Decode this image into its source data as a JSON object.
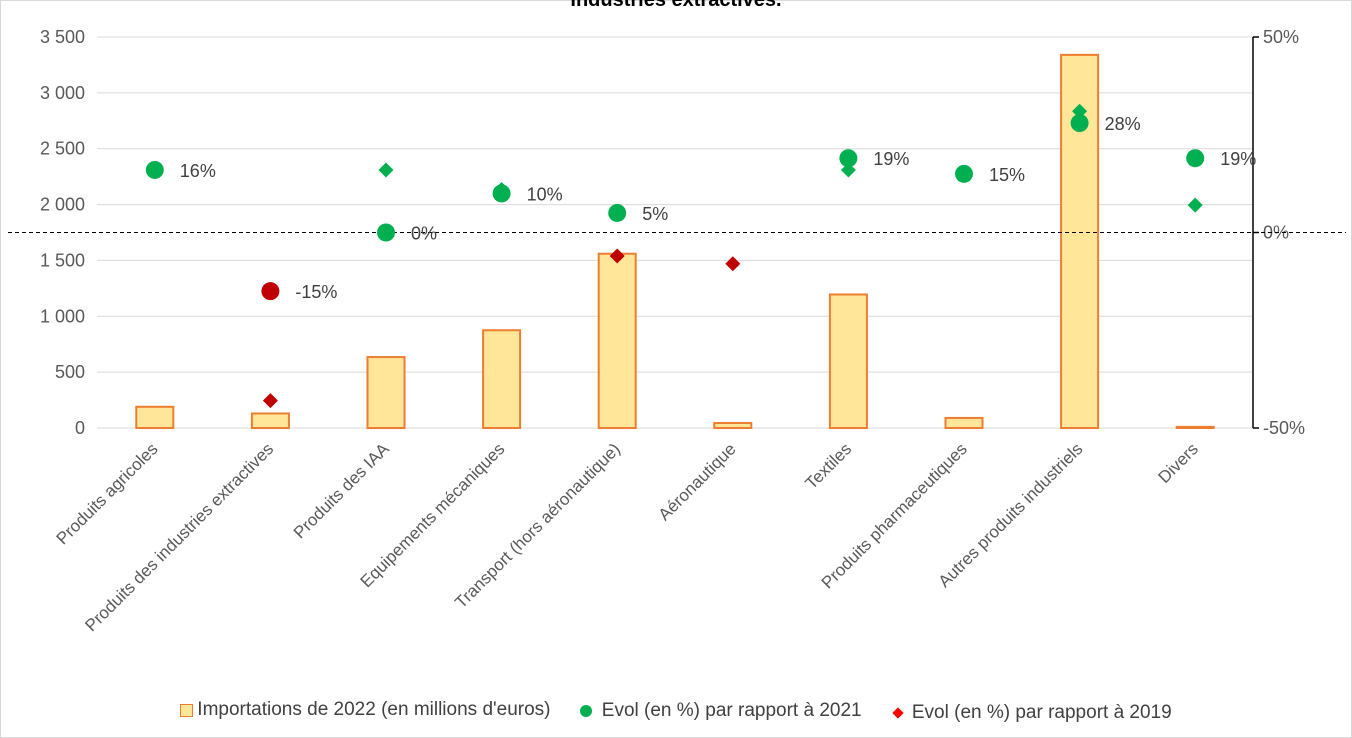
{
  "chart_data": {
    "type": "bar",
    "title": "Industries extractives.",
    "categories": [
      "Produits agricoles",
      "Produits des industries extractives",
      "Produits des IAA",
      "Equipements mécaniques",
      "Transport (hors aéronautique)",
      "Aéronautique",
      "Textiles",
      "Produits pharmaceutiques",
      "Autres produits industriels",
      "Divers"
    ],
    "y_left": {
      "ylim": [
        0,
        3500
      ],
      "ticks": [
        0,
        500,
        1000,
        1500,
        2000,
        2500,
        3000,
        3500
      ],
      "tick_labels": [
        "0",
        "500",
        "1 000",
        "1 500",
        "2 000",
        "2 500",
        "3 000",
        "3 500"
      ]
    },
    "y_right": {
      "ylim": [
        -50,
        50
      ],
      "ticks": [
        -50,
        0,
        50
      ],
      "tick_labels": [
        "-50%",
        "0%",
        "50%"
      ]
    },
    "reference_line": {
      "y_right": 0,
      "style": "dashed"
    },
    "series": [
      {
        "name": "Importations de 2022 (en millions d'euros)",
        "axis": "left",
        "kind": "bar",
        "color": "#ffe699",
        "edge_color": "#ed7d31",
        "values": [
          190,
          130,
          635,
          875,
          1560,
          45,
          1195,
          90,
          3340,
          10
        ]
      },
      {
        "name": "Evol (en %) par rapport à 2021",
        "axis": "right",
        "kind": "circle",
        "color": "#00b050",
        "values": [
          16,
          -15,
          0,
          10,
          5,
          null,
          19,
          15,
          28,
          19
        ],
        "labels": [
          "16%",
          "-15%",
          "0%",
          "10%",
          "5%",
          "",
          "19%",
          "15%",
          "28%",
          "19%"
        ]
      },
      {
        "name": "Evol (en %) par rapport à 2019",
        "axis": "right",
        "kind": "diamond",
        "color": "#ff0000",
        "values": [
          null,
          -43,
          16,
          11,
          -6,
          -8,
          16,
          null,
          31,
          7
        ]
      }
    ],
    "legend_position": "bottom",
    "grid": true
  }
}
